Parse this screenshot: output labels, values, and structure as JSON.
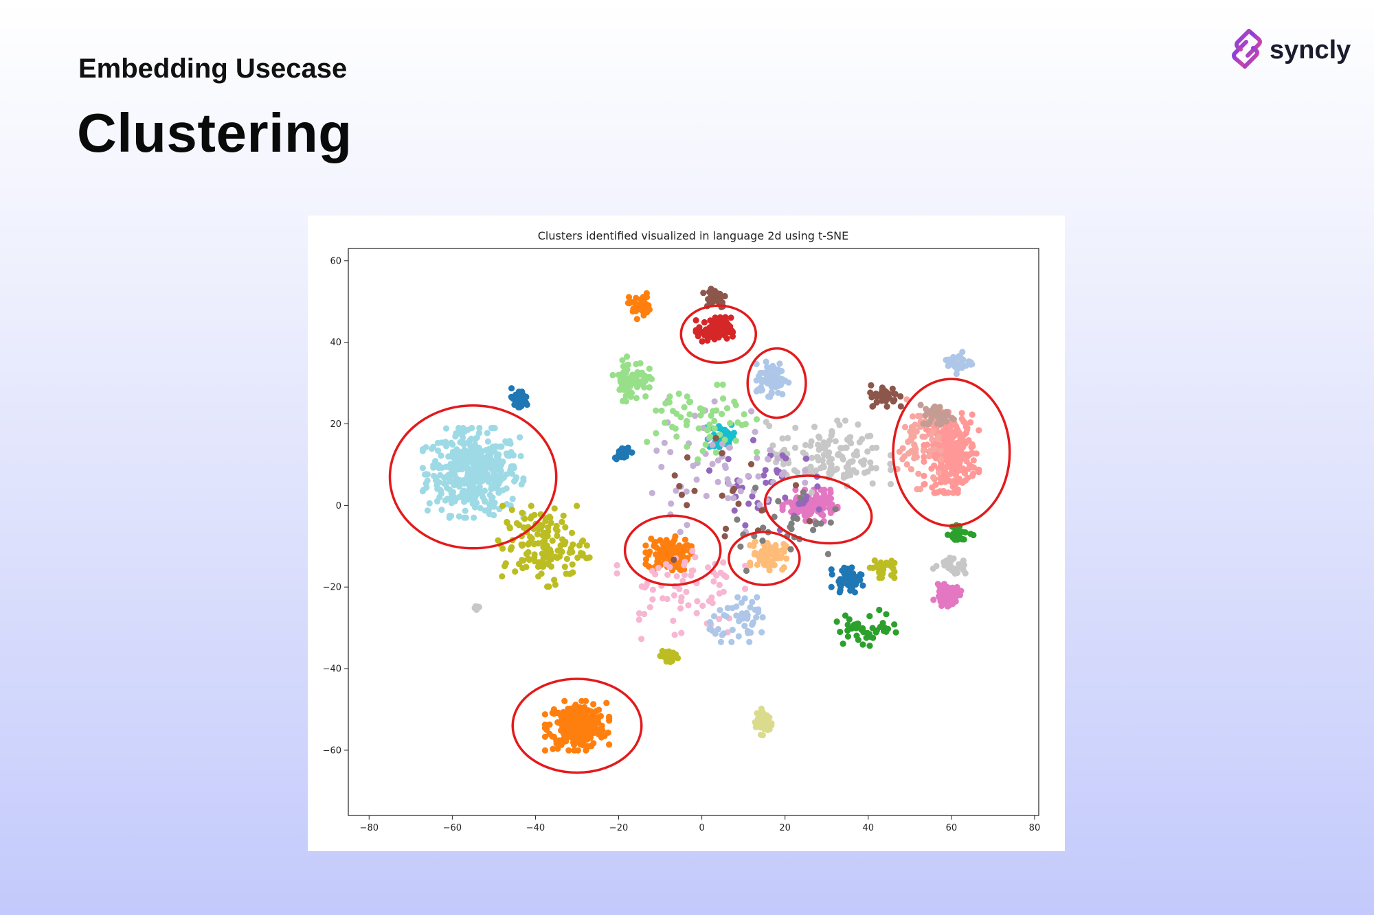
{
  "slide": {
    "subtitle": "Embedding Usecase",
    "title": "Clustering"
  },
  "brand": {
    "name": "syncly",
    "icon": "chain-link-icon",
    "gradient": [
      "#6b3df5",
      "#e9478f"
    ]
  },
  "colors": {
    "highlight_ellipse": "#e31a1c",
    "axis": "#222222"
  },
  "chart_data": {
    "type": "scatter",
    "title": "Clusters identified visualized in language 2d using t-SNE",
    "xlabel": "",
    "ylabel": "",
    "xlim": [
      -85,
      81
    ],
    "ylim": [
      -76,
      63
    ],
    "xticks": [
      -80,
      -60,
      -40,
      -20,
      0,
      20,
      40,
      60,
      80
    ],
    "yticks": [
      -60,
      -40,
      -20,
      0,
      20,
      40,
      60
    ],
    "xtick_labels": [
      "−80",
      "−60",
      "−40",
      "−20",
      "0",
      "20",
      "40",
      "60",
      "80"
    ],
    "ytick_labels": [
      "−60",
      "−40",
      "−20",
      "0",
      "20",
      "40",
      "60"
    ],
    "grid": false,
    "legend": false,
    "clusters": [
      {
        "name": "lightblue-left",
        "color": "#9edae5",
        "center": [
          -55,
          8
        ],
        "spread": [
          11,
          10
        ],
        "count": 420
      },
      {
        "name": "orange-bottom",
        "color": "#ff7f0e",
        "center": [
          -30,
          -54
        ],
        "spread": [
          7,
          5.5
        ],
        "count": 260
      },
      {
        "name": "orange-mid",
        "color": "#ff7f0e",
        "center": [
          -8,
          -12
        ],
        "spread": [
          5,
          4
        ],
        "count": 130
      },
      {
        "name": "orange-top",
        "color": "#ff7f0e",
        "center": [
          -15,
          49
        ],
        "spread": [
          2.5,
          3
        ],
        "count": 40
      },
      {
        "name": "pink-right",
        "color": "#ff9896",
        "center": [
          60,
          13
        ],
        "spread": [
          6,
          9
        ],
        "count": 300
      },
      {
        "name": "salmon-right",
        "color": "#f7a6a0",
        "center": [
          52,
          15
        ],
        "spread": [
          5,
          10
        ],
        "count": 60
      },
      {
        "name": "magenta-mid",
        "color": "#e377c2",
        "center": [
          26,
          0
        ],
        "spread": [
          6,
          3.5
        ],
        "count": 150
      },
      {
        "name": "magenta-lower",
        "color": "#e377c2",
        "center": [
          59,
          -22
        ],
        "spread": [
          3,
          2.5
        ],
        "count": 55
      },
      {
        "name": "peach-mid",
        "color": "#ffbb78",
        "center": [
          16,
          -12
        ],
        "spread": [
          4,
          3.5
        ],
        "count": 80
      },
      {
        "name": "red-top",
        "color": "#d62728",
        "center": [
          3,
          43
        ],
        "spread": [
          4,
          3
        ],
        "count": 100
      },
      {
        "name": "steelblue-top",
        "color": "#aec7e8",
        "center": [
          17,
          31
        ],
        "spread": [
          3.5,
          4
        ],
        "count": 70
      },
      {
        "name": "steelblue-right",
        "color": "#aec7e8",
        "center": [
          62,
          35
        ],
        "spread": [
          3,
          2.5
        ],
        "count": 35
      },
      {
        "name": "brown-top",
        "color": "#8c564b",
        "center": [
          3,
          51
        ],
        "spread": [
          3,
          2.5
        ],
        "count": 45
      },
      {
        "name": "brown-right",
        "color": "#8c564b",
        "center": [
          44,
          27
        ],
        "spread": [
          3.5,
          2.5
        ],
        "count": 45
      },
      {
        "name": "rosybrown-right",
        "color": "#c49c94",
        "center": [
          57,
          22
        ],
        "spread": [
          4,
          2.5
        ],
        "count": 40
      },
      {
        "name": "green-left-top",
        "color": "#98df8a",
        "center": [
          -17,
          31
        ],
        "spread": [
          4,
          5
        ],
        "count": 70
      },
      {
        "name": "darkblue-top",
        "color": "#1f77b4",
        "center": [
          -44,
          26
        ],
        "spread": [
          2.5,
          2.5
        ],
        "count": 35
      },
      {
        "name": "darkblue-mid",
        "color": "#1f77b4",
        "center": [
          -19,
          13
        ],
        "spread": [
          2,
          1.5
        ],
        "count": 25
      },
      {
        "name": "darkblue-lower",
        "color": "#1f77b4",
        "center": [
          35,
          -18
        ],
        "spread": [
          3.5,
          3
        ],
        "count": 45
      },
      {
        "name": "olive-lower-left",
        "color": "#bcbd22",
        "center": [
          -38,
          -10
        ],
        "spread": [
          10,
          9
        ],
        "count": 140
      },
      {
        "name": "olive-bottom",
        "color": "#bcbd22",
        "center": [
          -8,
          -37
        ],
        "spread": [
          2,
          2
        ],
        "count": 30
      },
      {
        "name": "olive-right",
        "color": "#bcbd22",
        "center": [
          43,
          -15
        ],
        "spread": [
          3,
          2.5
        ],
        "count": 30
      },
      {
        "name": "khaki-bottom",
        "color": "#dbdb8d",
        "center": [
          15,
          -53
        ],
        "spread": [
          2,
          3
        ],
        "count": 50
      },
      {
        "name": "gray-light",
        "color": "#c7c7c7",
        "center": [
          30,
          12
        ],
        "spread": [
          14,
          8
        ],
        "count": 130
      },
      {
        "name": "gray-right",
        "color": "#c7c7c7",
        "center": [
          60,
          -15
        ],
        "spread": [
          4,
          2
        ],
        "count": 25
      },
      {
        "name": "gray-small-left",
        "color": "#c7c7c7",
        "center": [
          -54,
          -25
        ],
        "spread": [
          1,
          0.6
        ],
        "count": 8
      },
      {
        "name": "green-scatter",
        "color": "#2ca02c",
        "center": [
          40,
          -30
        ],
        "spread": [
          8,
          4
        ],
        "count": 40
      },
      {
        "name": "green-right-bottom",
        "color": "#2ca02c",
        "center": [
          62,
          -7
        ],
        "spread": [
          3,
          2
        ],
        "count": 25
      },
      {
        "name": "cyan-mid",
        "color": "#17becf",
        "center": [
          5,
          17
        ],
        "spread": [
          4,
          3
        ],
        "count": 35
      },
      {
        "name": "purple-mid",
        "color": "#9467bd",
        "center": [
          15,
          5
        ],
        "spread": [
          12,
          10
        ],
        "count": 40
      },
      {
        "name": "lightpink-scatter",
        "color": "#f7b6d2",
        "center": [
          -5,
          -20
        ],
        "spread": [
          14,
          12
        ],
        "count": 70
      },
      {
        "name": "lavender-scatter",
        "color": "#c5b0d5",
        "center": [
          5,
          10
        ],
        "spread": [
          18,
          15
        ],
        "count": 60
      },
      {
        "name": "lightgreen-mid",
        "color": "#98df8a",
        "center": [
          0,
          20
        ],
        "spread": [
          12,
          10
        ],
        "count": 60
      },
      {
        "name": "darkgray-mid",
        "color": "#7f7f7f",
        "center": [
          20,
          -5
        ],
        "spread": [
          14,
          10
        ],
        "count": 30
      },
      {
        "name": "lightblue-mid-scatter",
        "color": "#aec7e8",
        "center": [
          10,
          -28
        ],
        "spread": [
          8,
          5
        ],
        "count": 50
      },
      {
        "name": "brown-scatter",
        "color": "#8c564b",
        "center": [
          10,
          0
        ],
        "spread": [
          20,
          15
        ],
        "count": 20
      }
    ],
    "highlighted_clusters": [
      {
        "center": [
          -55,
          7
        ],
        "radii": [
          20,
          17.5
        ],
        "angle": 0
      },
      {
        "center": [
          -30,
          -54
        ],
        "radii": [
          15.5,
          11.5
        ],
        "angle": 0
      },
      {
        "center": [
          -7,
          -11
        ],
        "radii": [
          11.5,
          8.5
        ],
        "angle": 0
      },
      {
        "center": [
          4,
          42
        ],
        "radii": [
          9,
          7
        ],
        "angle": 0
      },
      {
        "center": [
          18,
          30
        ],
        "radii": [
          7,
          8.5
        ],
        "angle": 0
      },
      {
        "center": [
          28,
          -1
        ],
        "radii": [
          13,
          8
        ],
        "angle": -12
      },
      {
        "center": [
          15,
          -13
        ],
        "radii": [
          8.5,
          6.5
        ],
        "angle": 0
      },
      {
        "center": [
          60,
          13
        ],
        "radii": [
          14,
          18
        ],
        "angle": 0
      }
    ]
  }
}
